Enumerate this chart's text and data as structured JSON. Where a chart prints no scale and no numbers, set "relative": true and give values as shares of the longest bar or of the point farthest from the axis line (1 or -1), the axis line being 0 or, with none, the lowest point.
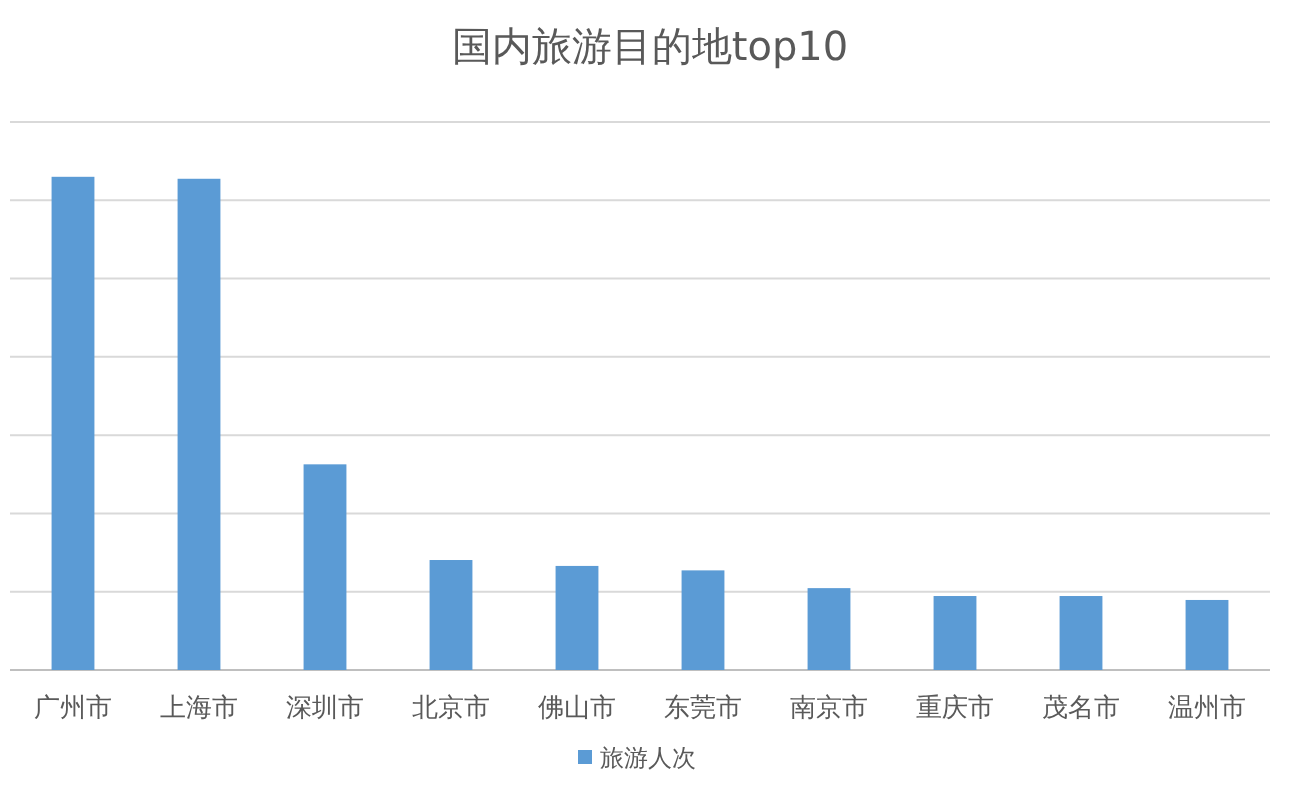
{
  "chart_data": {
    "type": "bar",
    "title": "国内旅游目的地top10",
    "relative": true,
    "grid": "y",
    "legend": "bottom",
    "categories": [
      "广州市",
      "上海市",
      "深圳市",
      "北京市",
      "佛山市",
      "东莞市",
      "南京市",
      "重庆市",
      "茂名市",
      "温州市"
    ],
    "series": [
      {
        "name": "旅游人次",
        "color": "#5b9bd5",
        "values": [
          1,
          0.996,
          0.417,
          0.223,
          0.211,
          0.202,
          0.166,
          0.15,
          0.15,
          0.142
        ]
      }
    ]
  }
}
